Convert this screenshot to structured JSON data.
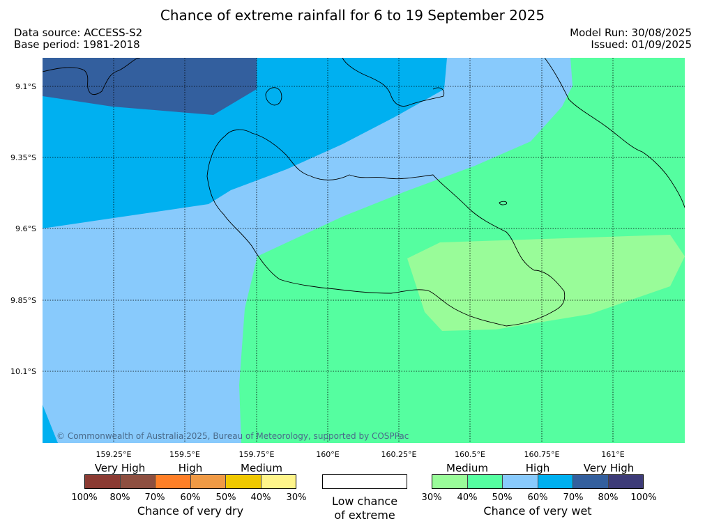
{
  "title": "Chance of extreme rainfall for 6 to 19 September 2025",
  "meta": {
    "data_source": "Data source: ACCESS-S2",
    "base_period": "Base period: 1981-2018",
    "model_run": "Model Run: 30/08/2025",
    "issued": "Issued: 01/09/2025"
  },
  "map": {
    "copyright": "© Commonwealth of Australia 2025, Bureau of Meteorology, supported by COSPPac",
    "lat_labels": [
      "9.1°S",
      "9.35°S",
      "9.6°S",
      "9.85°S",
      "10.1°S"
    ],
    "lon_labels": [
      "159.25°E",
      "159.5°E",
      "159.75°E",
      "160°E",
      "160.25°E",
      "160.5°E",
      "160.75°E",
      "161°E"
    ]
  },
  "legend": {
    "dry": {
      "groups": [
        "Very High",
        "High",
        "Medium"
      ],
      "colors": [
        "#8b3a32",
        "#8e4f40",
        "#ff7f27",
        "#f09a45",
        "#f0c800",
        "#fff58a"
      ],
      "ticks": [
        "100%",
        "80%",
        "70%",
        "60%",
        "50%",
        "40%",
        "30%"
      ],
      "title": "Chance of very dry"
    },
    "neutral": {
      "title_line1": "Low chance",
      "title_line2": "of extreme"
    },
    "wet": {
      "groups": [
        "Medium",
        "High",
        "Very High"
      ],
      "colors": [
        "#99fc99",
        "#55fea0",
        "#88cafc",
        "#00b0f0",
        "#335f9e",
        "#3d3b78"
      ],
      "ticks": [
        "30%",
        "40%",
        "50%",
        "60%",
        "70%",
        "80%",
        "100%"
      ],
      "title": "Chance of very wet"
    }
  }
}
